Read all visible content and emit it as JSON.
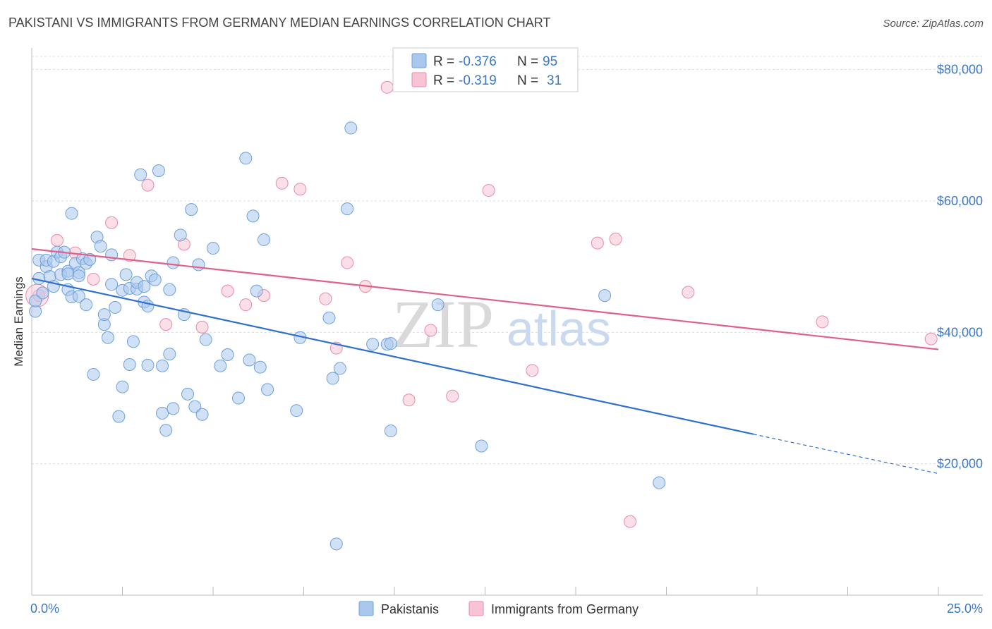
{
  "title": "PAKISTANI VS IMMIGRANTS FROM GERMANY MEDIAN EARNINGS CORRELATION CHART",
  "source": "Source: ZipAtlas.com",
  "watermark": {
    "zip": "ZIP",
    "atlas": "atlas"
  },
  "legend": {
    "pakistani": {
      "r_label": "R =",
      "r_value": "-0.376",
      "n_label": "N =",
      "n_value": "95"
    },
    "germany": {
      "r_label": "R =",
      "r_value": "-0.319",
      "n_label": "N =",
      "n_value": "31"
    }
  },
  "bottom_legend": {
    "pakistani": "Pakistanis",
    "germany": "Immigrants from Germany"
  },
  "colors": {
    "blue_fill": "#aac8ee",
    "blue_stroke": "#6fa0d8",
    "blue_line": "#2f6fd0",
    "pink_fill": "#f8c4d4",
    "pink_stroke": "#e88aaa",
    "pink_line": "#e0608a",
    "grid": "#dddddd",
    "axis_text": "#3c78c8"
  },
  "chart_data": {
    "type": "scatter",
    "title": "PAKISTANI VS IMMIGRANTS FROM GERMANY MEDIAN EARNINGS CORRELATION CHART",
    "xlabel": "",
    "ylabel": "Median Earnings",
    "xlim": [
      0,
      25
    ],
    "ylim": [
      0,
      82000
    ],
    "x_tick_labels": [
      "0.0%",
      "25.0%"
    ],
    "y_ticks": [
      20000,
      40000,
      60000,
      80000
    ],
    "y_tick_labels": [
      "$20,000",
      "$40,000",
      "$60,000",
      "$80,000"
    ],
    "grid": true,
    "series": [
      {
        "name": "Pakistanis",
        "r": -0.376,
        "n": 95,
        "trend": {
          "x0": 0,
          "y0": 48200,
          "x1": 19.9,
          "y1": 24500,
          "dash_to_x": 25,
          "dash_to_y": 18500
        },
        "points": [
          [
            0.1,
            43200
          ],
          [
            0.1,
            44800
          ],
          [
            0.2,
            48200
          ],
          [
            0.2,
            51000
          ],
          [
            0.3,
            46000
          ],
          [
            0.4,
            50000
          ],
          [
            0.4,
            51000
          ],
          [
            0.5,
            48500
          ],
          [
            0.6,
            50800
          ],
          [
            0.6,
            47000
          ],
          [
            0.7,
            52200
          ],
          [
            0.8,
            48800
          ],
          [
            0.8,
            51500
          ],
          [
            0.9,
            52200
          ],
          [
            1.0,
            49300
          ],
          [
            1.0,
            48900
          ],
          [
            1.0,
            46500
          ],
          [
            1.1,
            45400
          ],
          [
            1.1,
            58100
          ],
          [
            1.2,
            50500
          ],
          [
            1.3,
            45500
          ],
          [
            1.3,
            49100
          ],
          [
            1.3,
            48600
          ],
          [
            1.4,
            51200
          ],
          [
            1.5,
            50500
          ],
          [
            1.5,
            44200
          ],
          [
            1.6,
            51100
          ],
          [
            1.7,
            33600
          ],
          [
            1.8,
            54500
          ],
          [
            1.9,
            53100
          ],
          [
            2.0,
            41200
          ],
          [
            2.0,
            42700
          ],
          [
            2.1,
            39200
          ],
          [
            2.2,
            51800
          ],
          [
            2.2,
            47300
          ],
          [
            2.3,
            43800
          ],
          [
            2.4,
            27200
          ],
          [
            2.5,
            46400
          ],
          [
            2.5,
            31700
          ],
          [
            2.6,
            48800
          ],
          [
            2.7,
            46700
          ],
          [
            2.7,
            35100
          ],
          [
            2.8,
            38600
          ],
          [
            2.9,
            46600
          ],
          [
            2.9,
            47600
          ],
          [
            3.0,
            64000
          ],
          [
            3.1,
            44600
          ],
          [
            3.1,
            47000
          ],
          [
            3.2,
            44000
          ],
          [
            3.2,
            35000
          ],
          [
            3.3,
            48600
          ],
          [
            3.4,
            48000
          ],
          [
            3.5,
            64600
          ],
          [
            3.6,
            34900
          ],
          [
            3.6,
            27700
          ],
          [
            3.7,
            25100
          ],
          [
            3.8,
            46500
          ],
          [
            3.8,
            36700
          ],
          [
            3.9,
            50600
          ],
          [
            3.9,
            28400
          ],
          [
            4.1,
            54800
          ],
          [
            4.2,
            42700
          ],
          [
            4.3,
            30600
          ],
          [
            4.4,
            58700
          ],
          [
            4.5,
            28700
          ],
          [
            4.6,
            50300
          ],
          [
            4.7,
            27500
          ],
          [
            4.8,
            38900
          ],
          [
            5.0,
            52800
          ],
          [
            5.2,
            34900
          ],
          [
            5.4,
            36600
          ],
          [
            5.7,
            30000
          ],
          [
            5.9,
            66500
          ],
          [
            6.0,
            35800
          ],
          [
            6.1,
            57700
          ],
          [
            6.2,
            46300
          ],
          [
            6.3,
            34700
          ],
          [
            6.4,
            54100
          ],
          [
            6.5,
            31300
          ],
          [
            7.3,
            28100
          ],
          [
            7.4,
            39200
          ],
          [
            8.2,
            42200
          ],
          [
            8.3,
            33000
          ],
          [
            8.4,
            7800
          ],
          [
            8.5,
            34500
          ],
          [
            8.7,
            58800
          ],
          [
            8.8,
            71100
          ],
          [
            9.4,
            38200
          ],
          [
            9.8,
            38200
          ],
          [
            9.9,
            25000
          ],
          [
            11.2,
            44200
          ],
          [
            12.4,
            22700
          ],
          [
            15.8,
            45600
          ],
          [
            17.3,
            17100
          ],
          [
            9.9,
            38300
          ]
        ]
      },
      {
        "name": "Immigrants from Germany",
        "r": -0.319,
        "n": 31,
        "trend": {
          "x0": 0,
          "y0": 52700,
          "x1": 25,
          "y1": 37400
        },
        "points": [
          [
            0.2,
            45600
          ],
          [
            0.7,
            54000
          ],
          [
            1.2,
            52100
          ],
          [
            1.7,
            48100
          ],
          [
            2.2,
            56700
          ],
          [
            2.7,
            51700
          ],
          [
            3.2,
            62400
          ],
          [
            3.7,
            41200
          ],
          [
            4.2,
            53400
          ],
          [
            4.7,
            40800
          ],
          [
            5.4,
            46300
          ],
          [
            5.9,
            44200
          ],
          [
            6.4,
            45600
          ],
          [
            6.9,
            62700
          ],
          [
            7.4,
            61800
          ],
          [
            8.1,
            45100
          ],
          [
            8.4,
            37600
          ],
          [
            8.7,
            50600
          ],
          [
            9.2,
            47000
          ],
          [
            9.8,
            77300
          ],
          [
            10.4,
            29700
          ],
          [
            11.0,
            40300
          ],
          [
            11.6,
            30300
          ],
          [
            12.6,
            61600
          ],
          [
            13.8,
            34200
          ],
          [
            15.6,
            53600
          ],
          [
            16.1,
            54200
          ],
          [
            16.5,
            11200
          ],
          [
            18.1,
            46100
          ],
          [
            21.8,
            41600
          ],
          [
            24.8,
            39000
          ]
        ]
      }
    ]
  }
}
